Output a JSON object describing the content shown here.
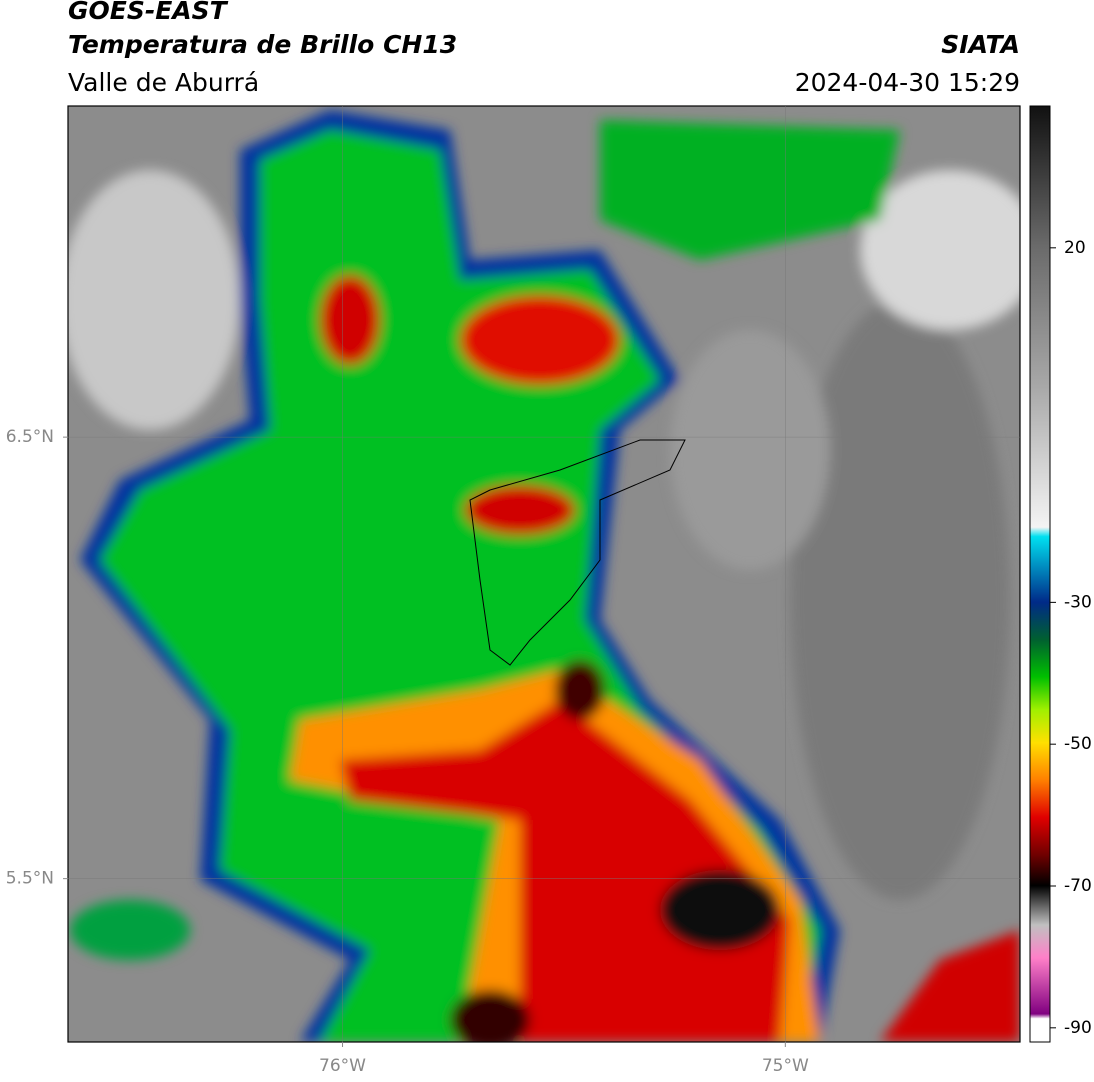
{
  "header": {
    "title": "GOES-EAST",
    "subtitle": "Temperatura de Brillo CH13",
    "region": "Valle de Aburrá",
    "source": "SIATA",
    "datetime": "2024-04-30 15:29"
  },
  "map": {
    "xlim": [
      -76.62,
      -74.47
    ],
    "ylim": [
      5.13,
      7.25
    ],
    "xticks": [
      {
        "value": -76,
        "label": "76°W"
      },
      {
        "value": -75,
        "label": "75°W"
      }
    ],
    "yticks": [
      {
        "value": 6.5,
        "label": "6.5°N"
      },
      {
        "value": 5.5,
        "label": "5.5°N"
      }
    ],
    "grid": true
  },
  "colorbar": {
    "lim": [
      -92,
      40
    ],
    "ticks": [
      20,
      -30,
      -50,
      -70,
      -90
    ]
  }
}
